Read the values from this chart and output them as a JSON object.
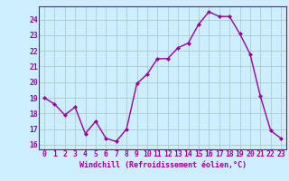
{
  "x": [
    0,
    1,
    2,
    3,
    4,
    5,
    6,
    7,
    8,
    9,
    10,
    11,
    12,
    13,
    14,
    15,
    16,
    17,
    18,
    19,
    20,
    21,
    22,
    23
  ],
  "y": [
    19.0,
    18.6,
    17.9,
    18.4,
    16.7,
    17.5,
    16.4,
    16.2,
    17.0,
    19.9,
    20.5,
    21.5,
    21.5,
    22.2,
    22.5,
    23.7,
    24.5,
    24.2,
    24.2,
    23.1,
    21.8,
    19.1,
    16.9,
    16.4
  ],
  "line_color": "#9b009b",
  "marker": "D",
  "marker_size": 2.0,
  "bg_color": "#cceeff",
  "grid_color": "#aacccc",
  "xlabel": "Windchill (Refroidissement éolien,°C)",
  "xlabel_color": "#9b009b",
  "tick_color": "#9b009b",
  "ylim": [
    15.7,
    24.85
  ],
  "yticks": [
    16,
    17,
    18,
    19,
    20,
    21,
    22,
    23,
    24
  ],
  "xlim": [
    -0.5,
    23.5
  ],
  "xticks": [
    0,
    1,
    2,
    3,
    4,
    5,
    6,
    7,
    8,
    9,
    10,
    11,
    12,
    13,
    14,
    15,
    16,
    17,
    18,
    19,
    20,
    21,
    22,
    23
  ],
  "xtick_labels": [
    "0",
    "1",
    "2",
    "3",
    "4",
    "5",
    "6",
    "7",
    "8",
    "9",
    "10",
    "11",
    "12",
    "13",
    "14",
    "15",
    "16",
    "17",
    "18",
    "19",
    "20",
    "21",
    "22",
    "23"
  ],
  "label_fontsize": 6.0,
  "tick_fontsize": 5.8,
  "linewidth": 1.0,
  "spine_color": "#9b009b"
}
